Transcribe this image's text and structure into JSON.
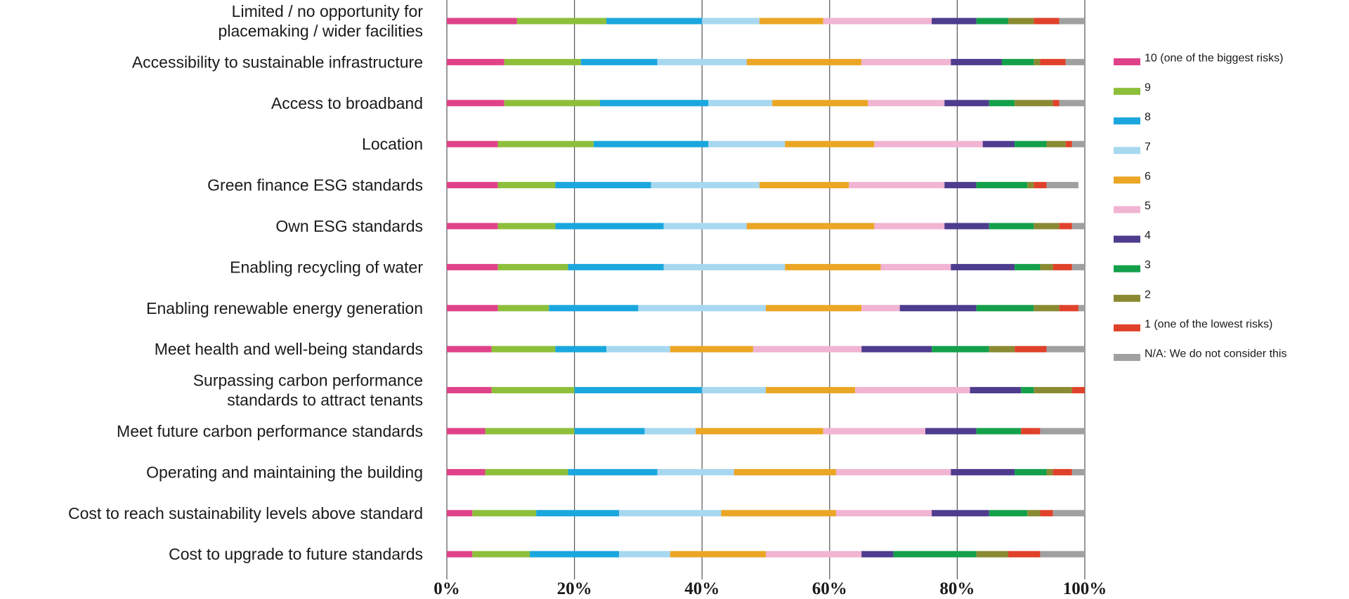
{
  "chart_data": {
    "type": "bar",
    "orientation": "horizontal",
    "stacked": "percent",
    "title": "",
    "xlabel": "",
    "ylabel": "",
    "xlim": [
      0,
      100
    ],
    "x_ticks": [
      "0%",
      "20%",
      "40%",
      "60%",
      "80%",
      "100%"
    ],
    "grid": true,
    "legend_position": "right",
    "categories": [
      [
        "Limited / no opportunity for",
        "placemaking / wider facilities"
      ],
      [
        "Accessibility to sustainable infrastructure"
      ],
      [
        "Access to broadband"
      ],
      [
        "Location"
      ],
      [
        "Green finance ESG standards"
      ],
      [
        "Own ESG standards"
      ],
      [
        "Enabling recycling of water"
      ],
      [
        "Enabling renewable energy generation"
      ],
      [
        "Meet health and well-being standards"
      ],
      [
        "Surpassing carbon performance",
        "standards to attract tenants"
      ],
      [
        "Meet future carbon performance standards"
      ],
      [
        "Operating and maintaining the building"
      ],
      [
        "Cost to reach sustainability levels above standard"
      ],
      [
        "Cost to upgrade to future standards"
      ]
    ],
    "series": [
      {
        "name": "10 (one of the biggest risks)",
        "color": "#e0428a",
        "values": [
          11,
          9,
          9,
          8,
          8,
          8,
          8,
          8,
          7,
          7,
          6,
          6,
          4,
          4
        ]
      },
      {
        "name": "9",
        "color": "#8ebf3b",
        "values": [
          14,
          12,
          15,
          15,
          9,
          9,
          11,
          8,
          10,
          13,
          14,
          13,
          10,
          9
        ]
      },
      {
        "name": "8",
        "color": "#1aa7de",
        "values": [
          15,
          12,
          17,
          18,
          15,
          17,
          15,
          14,
          8,
          20,
          11,
          14,
          13,
          14
        ]
      },
      {
        "name": "7",
        "color": "#a7d8f0",
        "values": [
          9,
          14,
          10,
          12,
          17,
          13,
          19,
          20,
          10,
          10,
          8,
          12,
          16,
          8
        ]
      },
      {
        "name": "6",
        "color": "#eaa624",
        "values": [
          10,
          18,
          15,
          14,
          14,
          20,
          15,
          15,
          13,
          14,
          20,
          16,
          18,
          15
        ]
      },
      {
        "name": "5",
        "color": "#f1b4d3",
        "values": [
          17,
          14,
          12,
          17,
          15,
          11,
          11,
          6,
          17,
          18,
          16,
          18,
          15,
          15
        ]
      },
      {
        "name": "4",
        "color": "#4e3c8e",
        "values": [
          7,
          8,
          7,
          5,
          5,
          7,
          10,
          12,
          11,
          8,
          8,
          10,
          9,
          5
        ]
      },
      {
        "name": "3",
        "color": "#14a04b",
        "values": [
          5,
          5,
          4,
          5,
          8,
          7,
          4,
          9,
          9,
          2,
          7,
          5,
          6,
          13
        ]
      },
      {
        "name": "2",
        "color": "#8a8a32",
        "values": [
          4,
          1,
          6,
          3,
          1,
          4,
          2,
          4,
          4,
          6,
          0,
          1,
          2,
          5
        ]
      },
      {
        "name": "1 (one of the lowest risks)",
        "color": "#e0412a",
        "values": [
          4,
          4,
          1,
          1,
          2,
          2,
          3,
          3,
          5,
          2,
          3,
          3,
          2,
          5
        ]
      },
      {
        "name": "N/A: We do not consider this",
        "color": "#a0a0a0",
        "values": [
          4,
          3,
          4,
          2,
          5,
          2,
          2,
          1,
          6,
          0,
          7,
          2,
          5,
          7
        ]
      }
    ]
  }
}
